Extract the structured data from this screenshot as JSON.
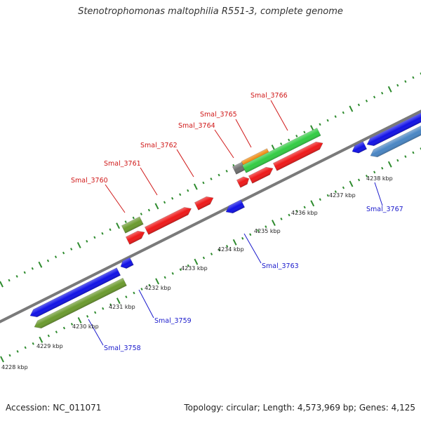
{
  "title": "Stenotrophomonas maltophilia R551-3, complete genome",
  "footer": {
    "accession": "Accession: NC_011071",
    "summary": "Topology: circular; Length: 4,573,969 bp; Genes: 4,125"
  },
  "colors": {
    "strand_line": "#7a7a7a",
    "tick": "#2e8b2e",
    "upper_label": "#d01818",
    "lower_label": "#1a1acc",
    "gene_red": "#ee1a1a",
    "gene_blue": "#1212e6",
    "gene_olive": "#6b9a2e",
    "gene_green": "#33cc44",
    "gene_orange": "#f08c14",
    "gene_gray": "#707070",
    "gene_steel": "#4a86c4"
  },
  "kbp_labels": [
    "4228 kbp",
    "4229 kbp",
    "4230 kbp",
    "4231 kbp",
    "4232 kbp",
    "4233 kbp",
    "4234 kbp",
    "4235 kbp",
    "4236 kbp",
    "4237 kbp",
    "4238 kbp"
  ],
  "upper_gene_labels": [
    "Smal_3760",
    "Smal_3761",
    "Smal_3762",
    "Smal_3764",
    "Smal_3765",
    "Smal_3766"
  ],
  "lower_gene_labels": [
    "Smal_3758",
    "Smal_3759",
    "Smal_3763",
    "Smal_3767"
  ]
}
